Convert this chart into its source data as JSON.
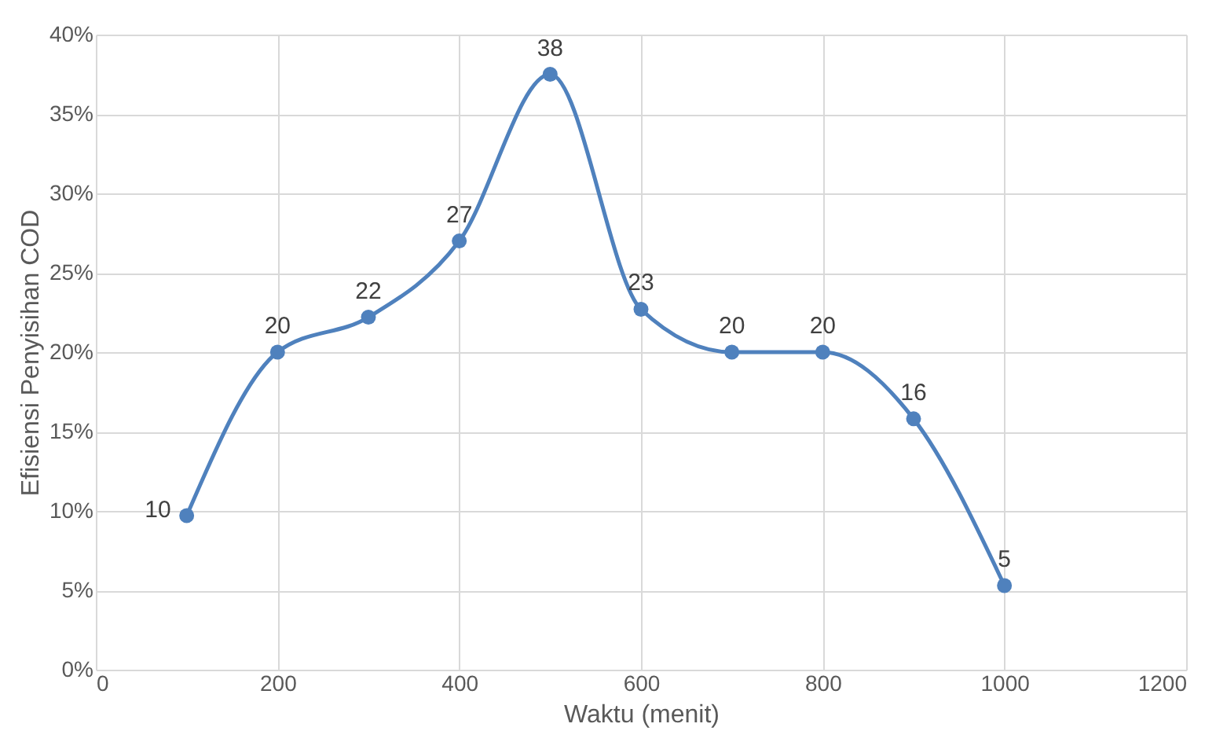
{
  "chart_data": {
    "type": "line",
    "xlabel": "Waktu (menit)",
    "ylabel": "Efisiensi Penyisihan COD",
    "x": [
      100,
      200,
      300,
      400,
      500,
      600,
      700,
      800,
      900,
      1000
    ],
    "series": [
      {
        "color": "#4f81bd",
        "values": [
          9.7,
          20,
          22.2,
          27,
          37.5,
          22.7,
          20,
          20,
          15.8,
          5.3
        ],
        "value_labels": [
          "10",
          "20",
          "22",
          "27",
          "38",
          "23",
          "20",
          "20",
          "16",
          "5"
        ]
      }
    ],
    "xlim": [
      0,
      1200
    ],
    "xticks": [
      0,
      200,
      400,
      600,
      800,
      1000,
      1200
    ],
    "ylim": [
      0,
      40
    ],
    "yticks": [
      {
        "value": 0,
        "label": "0%"
      },
      {
        "value": 5,
        "label": "5%"
      },
      {
        "value": 10,
        "label": "10%"
      },
      {
        "value": 15,
        "label": "15%"
      },
      {
        "value": 20,
        "label": "20%"
      },
      {
        "value": 25,
        "label": "25%"
      },
      {
        "value": 30,
        "label": "30%"
      },
      {
        "value": 35,
        "label": "35%"
      },
      {
        "value": 40,
        "label": "40%"
      }
    ],
    "grid": true,
    "marker": "circle",
    "line_style": "solid"
  }
}
